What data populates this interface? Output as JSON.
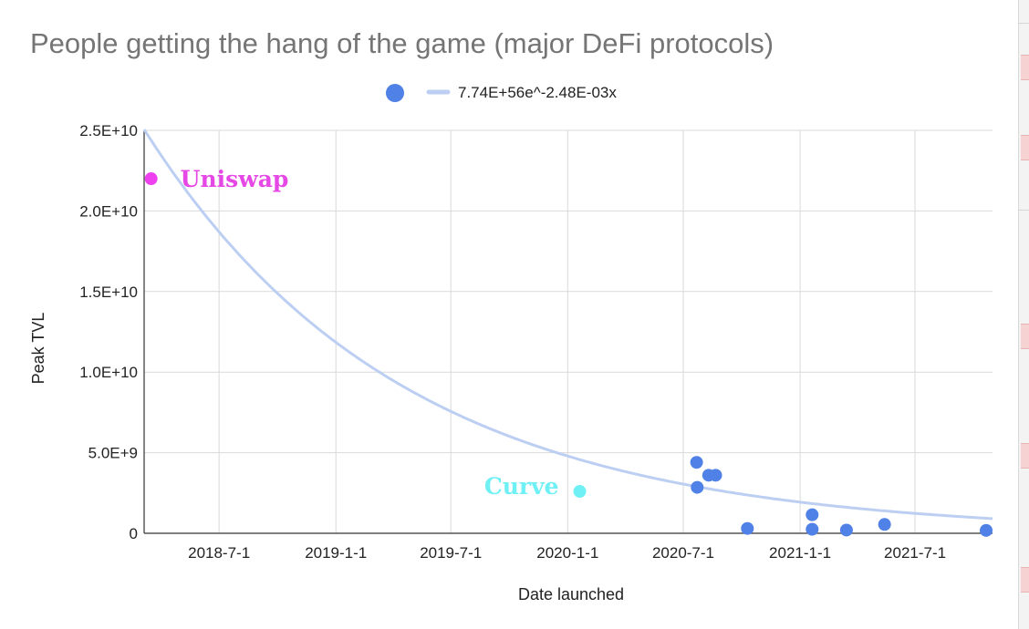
{
  "chart_data": {
    "type": "scatter",
    "title": "People getting the hang of the game (major DeFi protocols)",
    "xlabel": "Date launched",
    "ylabel": "Peak TVL",
    "x_range": [
      "2018-03-05",
      "2021-10-31"
    ],
    "ylim": [
      0,
      25000000000
    ],
    "grid": true,
    "legend_position": "top",
    "x_ticks": [
      {
        "date": "2018-07-01",
        "label": "2018-7-1"
      },
      {
        "date": "2019-01-01",
        "label": "2019-1-1"
      },
      {
        "date": "2019-07-01",
        "label": "2019-7-1"
      },
      {
        "date": "2020-01-01",
        "label": "2020-1-1"
      },
      {
        "date": "2020-07-01",
        "label": "2020-7-1"
      },
      {
        "date": "2021-01-01",
        "label": "2021-1-1"
      },
      {
        "date": "2021-07-01",
        "label": "2021-7-1"
      }
    ],
    "y_ticks": [
      {
        "value": 0,
        "label": "0"
      },
      {
        "value": 5000000000,
        "label": "5.0E+9"
      },
      {
        "value": 10000000000,
        "label": "1.0E+10"
      },
      {
        "value": 15000000000,
        "label": "1.5E+10"
      },
      {
        "value": 20000000000,
        "label": "2.0E+10"
      },
      {
        "value": 25000000000,
        "label": "2.5E+10"
      }
    ],
    "series": [
      {
        "name": "Peak TVL",
        "color": "#4f81e6",
        "points": [
          {
            "date": "2018-03-16",
            "value": 22000000000,
            "color": "#ee40ee"
          },
          {
            "date": "2020-01-20",
            "value": 2600000000,
            "color": "#6ff0f5"
          },
          {
            "date": "2020-07-22",
            "value": 4400000000
          },
          {
            "date": "2020-07-23",
            "value": 2850000000
          },
          {
            "date": "2020-08-10",
            "value": 3600000000
          },
          {
            "date": "2020-08-21",
            "value": 3600000000
          },
          {
            "date": "2020-10-10",
            "value": 300000000
          },
          {
            "date": "2021-01-20",
            "value": 1150000000
          },
          {
            "date": "2021-01-20",
            "value": 250000000
          },
          {
            "date": "2021-03-15",
            "value": 200000000
          },
          {
            "date": "2021-05-14",
            "value": 550000000
          },
          {
            "date": "2021-10-21",
            "value": 180000000
          }
        ]
      }
    ],
    "trendline": {
      "label": "7.74E+56e^-2.48E-03x",
      "type": "exponential",
      "a": 7.74e+56,
      "b": -0.00248,
      "x_unit": "sheets-serial-day",
      "color": "#bccff2"
    },
    "annotations": [
      {
        "text": "Uniswap",
        "date": "2018-03-16",
        "value": 22000000000,
        "color": "#e648e6"
      },
      {
        "text": "Curve",
        "date": "2020-01-20",
        "value": 2600000000,
        "color": "#6ff0f5"
      }
    ]
  }
}
